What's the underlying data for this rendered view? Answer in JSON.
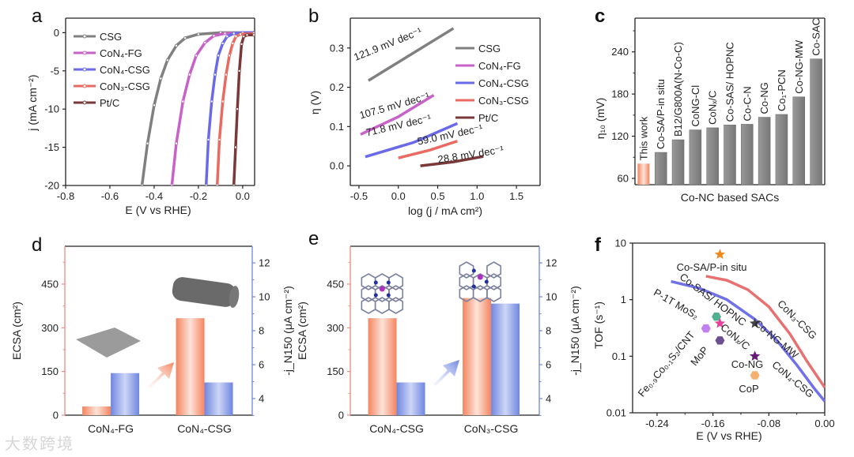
{
  "panel_letters": [
    "a",
    "b",
    "c",
    "d",
    "e",
    "f"
  ],
  "watermark": "大数跨境",
  "chart_data": [
    {
      "panel": "a",
      "type": "line",
      "xlabel": "E  (V vs RHE)",
      "ylabel": "j (mA cm⁻²)",
      "xlim": [
        -0.8,
        0.054
      ],
      "ylim": [
        -20,
        1.9
      ],
      "xticks": [
        -0.8,
        -0.6,
        -0.4,
        -0.2,
        0.0
      ],
      "xtick_labels": [
        "-0.8",
        "-0.6",
        "-0.4",
        "-0.2",
        "0.0"
      ],
      "yticks": [
        0,
        -5,
        -10,
        -15,
        -20
      ],
      "ytick_labels": [
        "0",
        "-5",
        "-10",
        "-15",
        "-20"
      ],
      "legend": "top-left",
      "series": [
        {
          "name": "CSG",
          "color": "#808080",
          "points": [
            [
              -0.455,
              -20
            ],
            [
              -0.43,
              -14.5
            ],
            [
              -0.4,
              -9.5
            ],
            [
              -0.37,
              -6
            ],
            [
              -0.34,
              -3.6
            ],
            [
              -0.3,
              -1.7
            ],
            [
              -0.26,
              -0.7
            ],
            [
              -0.2,
              -0.2
            ],
            [
              -0.1,
              0
            ],
            [
              0.05,
              0
            ]
          ]
        },
        {
          "name": "CoN₄-FG",
          "color": "#c862c8",
          "points": [
            [
              -0.32,
              -20
            ],
            [
              -0.3,
              -14.5
            ],
            [
              -0.27,
              -9
            ],
            [
              -0.24,
              -5.5
            ],
            [
              -0.21,
              -3
            ],
            [
              -0.17,
              -1.3
            ],
            [
              -0.13,
              -0.4
            ],
            [
              -0.08,
              -0.1
            ],
            [
              0.05,
              0
            ]
          ]
        },
        {
          "name": "CoN₄-CSG",
          "color": "#6a6ae8",
          "points": [
            [
              -0.165,
              -20
            ],
            [
              -0.155,
              -14
            ],
            [
              -0.14,
              -9
            ],
            [
              -0.125,
              -5.5
            ],
            [
              -0.11,
              -3
            ],
            [
              -0.09,
              -1.4
            ],
            [
              -0.07,
              -0.5
            ],
            [
              -0.04,
              -0.1
            ],
            [
              0,
              0
            ],
            [
              0.05,
              0
            ]
          ]
        },
        {
          "name": "CoN₃-CSG",
          "color": "#e86a60",
          "points": [
            [
              -0.115,
              -20
            ],
            [
              -0.105,
              -14
            ],
            [
              -0.09,
              -9
            ],
            [
              -0.075,
              -5.5
            ],
            [
              -0.06,
              -3
            ],
            [
              -0.045,
              -1.4
            ],
            [
              -0.03,
              -0.5
            ],
            [
              -0.01,
              -0.2
            ],
            [
              0.05,
              -0.1
            ]
          ]
        },
        {
          "name": "Pt/C",
          "color": "#7a3838",
          "points": [
            [
              -0.04,
              -20
            ],
            [
              -0.032,
              -15
            ],
            [
              -0.024,
              -10
            ],
            [
              -0.015,
              -5
            ],
            [
              -0.005,
              -1.5
            ],
            [
              0.005,
              -0.5
            ],
            [
              0.02,
              -0.3
            ],
            [
              0.05,
              -0.3
            ]
          ]
        }
      ]
    },
    {
      "panel": "b",
      "type": "line",
      "xlabel": "log (j / mA cm²)",
      "ylabel": "η (V)",
      "xlim": [
        -0.61,
        1.8
      ],
      "ylim": [
        -0.05,
        0.376
      ],
      "xticks": [
        -0.5,
        0,
        0.5,
        1,
        1.5
      ],
      "xtick_labels": [
        "-0.5",
        "0.0",
        "0.5",
        "1.0",
        "1.5"
      ],
      "yticks": [
        0,
        0.1,
        0.2,
        0.3
      ],
      "ytick_labels": [
        "0.0",
        "0.1",
        "0.2",
        "0.3"
      ],
      "legend": "top-right",
      "series": [
        {
          "name": "CSG",
          "color": "#808080",
          "tafel": "121.9 mV dec⁻¹",
          "points": [
            [
              -0.38,
              0.217
            ],
            [
              0.7,
              0.35
            ]
          ]
        },
        {
          "name": "CoN₄-FG",
          "color": "#c862c8",
          "tafel": "107.5 mV dec⁻¹",
          "points": [
            [
              -0.48,
              0.08
            ],
            [
              0.0,
              0.125
            ],
            [
              0.45,
              0.18
            ]
          ]
        },
        {
          "name": "CoN₄-CSG",
          "color": "#6a6ae8",
          "tafel": "71.8 mV dec⁻¹",
          "points": [
            [
              -0.42,
              0.023
            ],
            [
              0.2,
              0.06
            ],
            [
              0.75,
              0.108
            ]
          ]
        },
        {
          "name": "CoN₃-CSG",
          "color": "#e86a60",
          "tafel": "59.0 mV dec⁻¹",
          "points": [
            [
              0.0,
              0.02
            ],
            [
              0.4,
              0.04
            ],
            [
              0.75,
              0.063
            ]
          ]
        },
        {
          "name": "Pt/C",
          "color": "#7a3838",
          "tafel": "28.8 mV dec⁻¹",
          "points": [
            [
              0.28,
              0.0
            ],
            [
              0.7,
              0.01
            ],
            [
              1.08,
              0.024
            ]
          ]
        }
      ]
    },
    {
      "panel": "c",
      "type": "bar",
      "xlabel": "Co-NC based SACs",
      "ylabel": "η₁₀ (mV)",
      "ylim": [
        51,
        288
      ],
      "yticks": [
        60,
        120,
        180,
        240
      ],
      "ytick_labels": [
        "60",
        "120",
        "180",
        "240"
      ],
      "categories": [
        "This work",
        "Co-SA/P-in situ",
        "B12/G800A(N-Co-C)",
        "CoNG-Cl",
        "CoNₓ/C",
        "Co-SAS/ HOPNC",
        "Co-C-N",
        "Co-NG",
        "Co₁-PCN",
        "Co-NG-MW",
        "Co-SAC"
      ],
      "values": [
        81,
        97,
        115,
        129,
        132,
        136,
        137,
        147,
        151,
        176,
        230
      ],
      "highlight_color": "#f4845f",
      "bar_color": "#8c8c8c"
    },
    {
      "panel": "d",
      "type": "bar",
      "ylabel": "ECSA (cm²)",
      "ylabel_right": "-j_N150 (μA cm⁻²)",
      "ylim": [
        0,
        580
      ],
      "ylim_right": [
        3.02,
        12.98
      ],
      "yticks": [
        0,
        150,
        300,
        450
      ],
      "ytick_labels": [
        "0",
        "150",
        "300",
        "450"
      ],
      "yticks_right": [
        4,
        6,
        8,
        10,
        12
      ],
      "ytick_labels_right": [
        "4",
        "6",
        "8",
        "10",
        "12"
      ],
      "categories": [
        "CoN₄-FG",
        "CoN₄-CSG"
      ],
      "series": [
        {
          "name": "ECSA",
          "axis": "left",
          "color": "#f4845f",
          "values": [
            30,
            333
          ]
        },
        {
          "name": "-j_N150",
          "axis": "right",
          "color": "#6f86e0",
          "values": [
            5.5,
            4.95
          ]
        }
      ]
    },
    {
      "panel": "e",
      "type": "bar",
      "ylabel": "ECSA (cm²)",
      "ylabel_right": "-j_N150 (μA cm⁻²)",
      "ylim": [
        0,
        580
      ],
      "ylim_right": [
        3.02,
        12.98
      ],
      "yticks": [
        0,
        150,
        300,
        450
      ],
      "ytick_labels": [
        "0",
        "150",
        "300",
        "450"
      ],
      "yticks_right": [
        4,
        6,
        8,
        10,
        12
      ],
      "ytick_labels_right": [
        "4",
        "6",
        "8",
        "10",
        "12"
      ],
      "categories": [
        "CoN₄-CSG",
        "CoN₃-CSG"
      ],
      "series": [
        {
          "name": "ECSA",
          "axis": "left",
          "color": "#f4845f",
          "values": [
            333,
            402
          ]
        },
        {
          "name": "-j_N150",
          "axis": "right",
          "color": "#6f86e0",
          "values": [
            4.95,
            9.6
          ]
        }
      ]
    },
    {
      "panel": "f",
      "type": "scatter",
      "xlabel": "E (V vs RHE)",
      "ylabel": "TOF (s⁻¹)",
      "yscale": "log",
      "xlim": [
        -0.275,
        0
      ],
      "ylim": [
        0.01,
        10
      ],
      "xticks": [
        -0.24,
        -0.16,
        -0.08,
        0
      ],
      "xtick_labels": [
        "-0.24",
        "-0.16",
        "-0.08",
        "0.00"
      ],
      "yticks": [
        0.01,
        0.1,
        1,
        10
      ],
      "ytick_labels": [
        "0.01",
        "0.1",
        "1",
        "10"
      ],
      "series": [
        {
          "name": "CoN₄-CSG",
          "color": "#7070e8",
          "points": [
            [
              -0.22,
              2.1
            ],
            [
              -0.18,
              1.6
            ],
            [
              -0.14,
              1.0
            ],
            [
              -0.1,
              0.45
            ],
            [
              -0.07,
              0.2
            ],
            [
              -0.04,
              0.07
            ],
            [
              -0.015,
              0.027
            ],
            [
              0,
              0.016
            ]
          ]
        },
        {
          "name": "CoN₃-CSG",
          "color": "#e87070",
          "points": [
            [
              -0.17,
              2.6
            ],
            [
              -0.14,
              2.2
            ],
            [
              -0.11,
              1.5
            ],
            [
              -0.08,
              0.75
            ],
            [
              -0.05,
              0.25
            ],
            [
              -0.025,
              0.08
            ],
            [
              0,
              0.028
            ]
          ]
        }
      ],
      "markers": [
        {
          "name": "Co-SA/P-in situ",
          "shape": "star",
          "color": "#f08a20",
          "x": -0.15,
          "y": 6.3
        },
        {
          "name": "Co-SAS/ HOPNC",
          "shape": "none",
          "color": "#d070e0"
        },
        {
          "name": "P-1T MoS₂",
          "shape": "hexagon",
          "color": "#50b090",
          "x": -0.155,
          "y": 0.5
        },
        {
          "name": "CoNₓ/C",
          "shape": "star",
          "color": "#e8409a",
          "x": -0.15,
          "y": 0.38
        },
        {
          "name": "Fe₀.₉Co₀.₁S₂/CNT",
          "shape": "hexagon",
          "color": "#c080f0",
          "x": -0.17,
          "y": 0.31
        },
        {
          "name": "MoP",
          "shape": "hexagon",
          "color": "#6a5090",
          "x": -0.15,
          "y": 0.19
        },
        {
          "name": "Co-NG-MW",
          "shape": "star",
          "color": "#444444",
          "x": -0.1,
          "y": 0.38
        },
        {
          "name": "Co-NG",
          "shape": "star",
          "color": "#6a1a7a",
          "x": -0.1,
          "y": 0.1
        },
        {
          "name": "CoP",
          "shape": "hexagon",
          "color": "#f5b070",
          "x": -0.1,
          "y": 0.046
        }
      ]
    }
  ]
}
